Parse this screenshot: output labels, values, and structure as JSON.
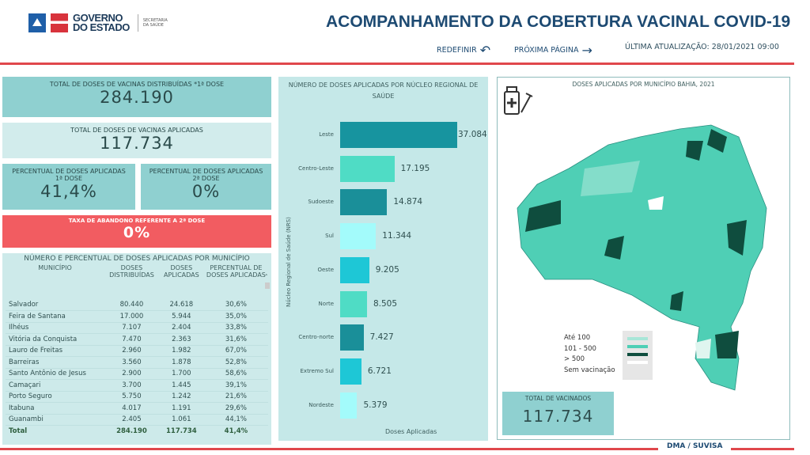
{
  "header": {
    "logo_text_1": "GOVERNO",
    "logo_text_2": "DO ESTADO",
    "logo_sub_1": "SECRETARIA",
    "logo_sub_2": "DA SAÚDE",
    "title": "ACOMPANHAMENTO DA COBERTURA VACINAL COVID-19",
    "reset_label": "REDEFINIR",
    "next_label": "PRÓXIMA PÁGINA",
    "updated": "ÚLTIMA ATUALIZAÇÃO: 28/01/2021 09:00"
  },
  "cards": {
    "distributed_label": "TOTAL DE DOSES DE VACINAS DISTRIBUÍDAS *1ª DOSE",
    "distributed_value": "284.190",
    "applied_label": "TOTAL DE DOSES DE VACINAS APLICADAS",
    "applied_value": "117.734",
    "pct1_label_1": "PERCENTUAL DE DOSES APLICADAS",
    "pct1_label_2": "1ª DOSE",
    "pct1_value": "41,4%",
    "pct2_label_1": "PERCENTUAL DE DOSES APLICADAS",
    "pct2_label_2": "2ª DOSE",
    "pct2_value": "0%",
    "abandon_label": "TAXA DE ABANDONO REFERENTE A 2ª DOSE",
    "abandon_value": "0%"
  },
  "table": {
    "title": "NÚMERO E PERCENTUAL DE DOSES APLICADAS POR MUNICÍPIO",
    "columns": [
      "MUNICÍPIO",
      "DOSES DISTRIBUÍDAS",
      "DOSES APLICADAS",
      "PERCENTUAL DE DOSES APLICADAS"
    ],
    "rows": [
      [
        "Salvador",
        "80.440",
        "24.618",
        "30,6%"
      ],
      [
        "Feira de Santana",
        "17.000",
        "5.944",
        "35,0%"
      ],
      [
        "Ilhéus",
        "7.107",
        "2.404",
        "33,8%"
      ],
      [
        "Vitória da Conquista",
        "7.470",
        "2.363",
        "31,6%"
      ],
      [
        "Lauro de Freitas",
        "2.960",
        "1.982",
        "67,0%"
      ],
      [
        "Barreiras",
        "3.560",
        "1.878",
        "52,8%"
      ],
      [
        "Santo Antônio de Jesus",
        "2.900",
        "1.700",
        "58,6%"
      ],
      [
        "Camaçari",
        "3.700",
        "1.445",
        "39,1%"
      ],
      [
        "Porto Seguro",
        "5.750",
        "1.242",
        "21,6%"
      ],
      [
        "Itabuna",
        "4.017",
        "1.191",
        "29,6%"
      ],
      [
        "Guanambi",
        "2.405",
        "1.061",
        "44,1%"
      ]
    ],
    "total": [
      "Total",
      "284.190",
      "117.734",
      "41,4%"
    ]
  },
  "chart_data": {
    "type": "bar",
    "orientation": "horizontal",
    "title": "NÚMERO DE DOSES APLICADAS POR NÚCLEO REGIONAL DE SAÚDE",
    "xlabel": "Doses Aplicadas",
    "ylabel": "Núcleo Regional de Saúde (NRS)",
    "categories": [
      "Leste",
      "Centro-Leste",
      "Sudoeste",
      "Sul",
      "Oeste",
      "Norte",
      "Centro-norte",
      "Extremo Sul",
      "Nordeste"
    ],
    "values": [
      37084,
      17195,
      14874,
      11344,
      9205,
      8505,
      7427,
      6721,
      5379
    ],
    "labels": [
      "37.084",
      "17.195",
      "14.874",
      "11.344",
      "9.205",
      "8.505",
      "7.427",
      "6.721",
      "5.379"
    ],
    "colors": [
      "#17949f",
      "#4fdcc5",
      "#1a8f99",
      "#a3fbfb",
      "#1ec7d6",
      "#4fdcc5",
      "#1a8f99",
      "#1ec7d6",
      "#a3fbfb"
    ]
  },
  "map": {
    "title": "DOSES APLICADAS POR MUNICÍPIO BAHIA, 2021",
    "legend": [
      {
        "label": "Até 100",
        "color": "#a8e6d8"
      },
      {
        "label": "101 - 500",
        "color": "#4fcfb5"
      },
      {
        "label": "> 500",
        "color": "#0f4d3e"
      },
      {
        "label": "Sem vacinação",
        "color": "#ffffff"
      }
    ],
    "total_label": "TOTAL DE VACINADOS",
    "total_value": "117.734"
  },
  "footer": {
    "text": "DMA / SUVISA"
  }
}
